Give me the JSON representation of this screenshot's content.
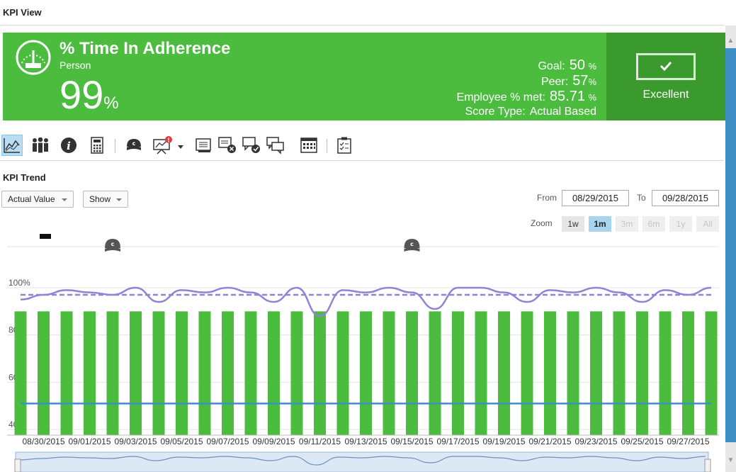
{
  "page_title": "KPI View",
  "kpi": {
    "title": "% Time In Adherence",
    "subtitle": "Person",
    "value": "99",
    "value_unit": "%",
    "stats": [
      {
        "label": "Goal:",
        "value": "50",
        "unit": "%"
      },
      {
        "label": "Peer:",
        "value": "57",
        "unit": "%"
      },
      {
        "label": "Employee % met:",
        "value": "85.71",
        "unit": "%"
      },
      {
        "label": "Score Type:",
        "value": "Actual Based",
        "unit": ""
      }
    ],
    "score_label": "Excellent"
  },
  "toolbar_icons": [
    "trend-chart-icon",
    "team-icon",
    "info-icon",
    "calculator-icon",
    "coach-icon",
    "presentation-alert-icon",
    "note-icon",
    "note-cancel-icon",
    "chat-approve-icon",
    "chat-icon",
    "calendar-icon",
    "clipboard-icon"
  ],
  "alert_badge": "!",
  "trend": {
    "section_title": "KPI Trend",
    "value_dropdown": "Actual Value",
    "show_dropdown": "Show",
    "from_label": "From",
    "from_date": "08/29/2015",
    "to_label": "To",
    "to_date": "09/28/2015",
    "zoom_label": "Zoom",
    "zoom_options": [
      {
        "label": "1w",
        "state": "enabled"
      },
      {
        "label": "1m",
        "state": "active"
      },
      {
        "label": "3m",
        "state": "disabled"
      },
      {
        "label": "6m",
        "state": "disabled"
      },
      {
        "label": "1y",
        "state": "disabled"
      },
      {
        "label": "All",
        "state": "disabled"
      }
    ]
  },
  "colors": {
    "green": "#4cbc3f",
    "dark_green": "#3a9a2e",
    "bar": "#4cbc3f",
    "line": "#9082d4",
    "goal": "#3d8fc6"
  },
  "chart_data": {
    "type": "bar",
    "x": [
      "08/29/2015",
      "08/30/2015",
      "08/31/2015",
      "09/01/2015",
      "09/02/2015",
      "09/03/2015",
      "09/04/2015",
      "09/05/2015",
      "09/06/2015",
      "09/07/2015",
      "09/08/2015",
      "09/09/2015",
      "09/10/2015",
      "09/11/2015",
      "09/12/2015",
      "09/13/2015",
      "09/14/2015",
      "09/15/2015",
      "09/16/2015",
      "09/17/2015",
      "09/18/2015",
      "09/19/2015",
      "09/20/2015",
      "09/21/2015",
      "09/22/2015",
      "09/23/2015",
      "09/24/2015",
      "09/25/2015",
      "09/26/2015",
      "09/27/2015",
      "09/28/2015"
    ],
    "tick_labels": [
      "08/30/2015",
      "09/01/2015",
      "09/03/2015",
      "09/05/2015",
      "09/07/2015",
      "09/09/2015",
      "09/11/2015",
      "09/13/2015",
      "09/15/2015",
      "09/17/2015",
      "09/19/2015",
      "09/21/2015",
      "09/23/2015",
      "09/25/2015",
      "09/27/2015"
    ],
    "y_tick_labels": [
      "40%",
      "60%",
      "80%",
      "100%"
    ],
    "ylim": [
      40,
      100
    ],
    "series": [
      {
        "type": "bar",
        "values": [
          90,
          90,
          90,
          90,
          90,
          90,
          90,
          90,
          90,
          90,
          90,
          90,
          90,
          90,
          90,
          90,
          90,
          90,
          90,
          90,
          90,
          90,
          90,
          90,
          90,
          90,
          90,
          90,
          90,
          90,
          90
        ]
      },
      {
        "type": "line",
        "values": [
          95,
          97,
          99,
          98,
          97,
          100,
          94,
          99,
          98,
          100,
          98,
          94,
          100,
          88,
          99,
          98,
          100,
          98,
          91,
          100,
          100,
          98,
          94,
          99,
          98,
          100,
          98,
          94,
          99,
          97,
          100
        ]
      },
      {
        "type": "line",
        "dashed": true,
        "values": [
          97,
          97,
          97,
          97,
          97,
          97,
          97,
          97,
          97,
          97,
          97,
          97,
          97,
          97,
          97,
          97,
          97,
          97,
          97,
          97,
          97,
          97,
          97,
          97,
          97,
          97,
          97,
          97,
          97,
          97,
          97
        ]
      },
      {
        "type": "line",
        "values": [
          51,
          51,
          51,
          51,
          51,
          51,
          51,
          51,
          51,
          51,
          51,
          51,
          51,
          51,
          51,
          51,
          51,
          51,
          51,
          51,
          51,
          51,
          51,
          51,
          51,
          51,
          51,
          51,
          51,
          51,
          51
        ]
      }
    ],
    "coach_markers": [
      "09/02/2015",
      "09/15/2015"
    ]
  }
}
